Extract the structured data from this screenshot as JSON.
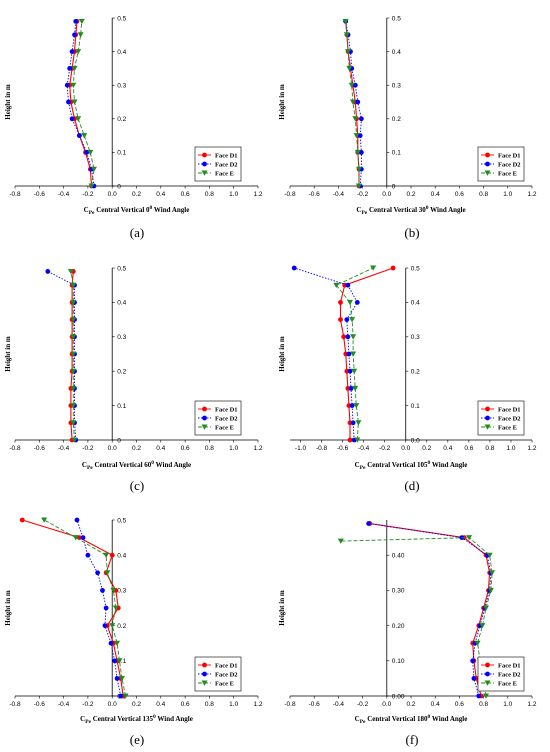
{
  "chart_data": [
    {
      "type": "line",
      "caption": "(a)",
      "xlabel_prefix": "C",
      "xlabel_sub": "Pe",
      "xlabel_mid": " Central Vertical ",
      "angle": "0",
      "xlabel_sup": "0",
      "xlabel_suffix": " Wind Angle",
      "ylabel": "Height in m",
      "xlim": [
        -0.8,
        1.2
      ],
      "ylim": [
        0,
        0.5
      ],
      "xticks": [
        "-0.8",
        "-0.6",
        "-0.4",
        "-0.2",
        "0.0",
        "0.2",
        "0.4",
        "0.6",
        "0.8",
        "1.0",
        "1.2"
      ],
      "yticks": [
        "0",
        "0.1",
        "0.2",
        "0.3",
        "0.4",
        "0.5"
      ],
      "series": [
        {
          "name": "Face D1",
          "x": [
            -0.17,
            -0.18,
            -0.22,
            -0.27,
            -0.31,
            -0.34,
            -0.35,
            -0.33,
            -0.31,
            -0.3,
            -0.29
          ],
          "y": [
            0,
            0.05,
            0.1,
            0.15,
            0.2,
            0.25,
            0.3,
            0.35,
            0.4,
            0.45,
            0.49
          ]
        },
        {
          "name": "Face D2",
          "x": [
            -0.15,
            -0.17,
            -0.21,
            -0.27,
            -0.33,
            -0.36,
            -0.37,
            -0.35,
            -0.33,
            -0.31,
            -0.3
          ],
          "y": [
            0,
            0.05,
            0.1,
            0.15,
            0.2,
            0.25,
            0.3,
            0.35,
            0.4,
            0.45,
            0.49
          ]
        },
        {
          "name": "Face E",
          "x": [
            -0.17,
            -0.15,
            -0.18,
            -0.23,
            -0.28,
            -0.31,
            -0.32,
            -0.31,
            -0.28,
            -0.26,
            -0.25
          ],
          "y": [
            0,
            0.05,
            0.1,
            0.15,
            0.2,
            0.25,
            0.3,
            0.35,
            0.4,
            0.45,
            0.49
          ]
        }
      ]
    },
    {
      "type": "line",
      "caption": "(b)",
      "xlabel_prefix": "C",
      "xlabel_sub": "Pe",
      "xlabel_mid": " Central Vertical ",
      "angle": "30",
      "xlabel_sup": "0",
      "xlabel_suffix": " Wind Angle",
      "ylabel": "Height in m",
      "xlim": [
        -0.8,
        1.2
      ],
      "ylim": [
        0,
        0.5
      ],
      "xticks": [
        "-0.8",
        "-0.6",
        "-0.4",
        "-0.2",
        "0.0",
        "0.2",
        "0.4",
        "0.6",
        "0.8",
        "1.0",
        "1.2"
      ],
      "yticks": [
        "0",
        "0.1",
        "0.2",
        "0.3",
        "0.4",
        "0.5"
      ],
      "series": [
        {
          "name": "Face D1",
          "x": [
            -0.23,
            -0.23,
            -0.24,
            -0.24,
            -0.25,
            -0.26,
            -0.28,
            -0.3,
            -0.32,
            -0.33,
            -0.34
          ],
          "y": [
            0,
            0.05,
            0.1,
            0.15,
            0.2,
            0.25,
            0.3,
            0.35,
            0.4,
            0.45,
            0.49
          ]
        },
        {
          "name": "Face D2",
          "x": [
            -0.22,
            -0.21,
            -0.21,
            -0.22,
            -0.21,
            -0.24,
            -0.26,
            -0.29,
            -0.3,
            -0.32,
            -0.34
          ],
          "y": [
            0,
            0.05,
            0.1,
            0.15,
            0.2,
            0.25,
            0.3,
            0.35,
            0.4,
            0.45,
            0.49
          ]
        },
        {
          "name": "Face E",
          "x": [
            -0.23,
            -0.23,
            -0.24,
            -0.25,
            -0.26,
            -0.28,
            -0.29,
            -0.31,
            -0.32,
            -0.33,
            -0.34
          ],
          "y": [
            0,
            0.05,
            0.1,
            0.15,
            0.2,
            0.25,
            0.3,
            0.35,
            0.4,
            0.45,
            0.49
          ]
        }
      ]
    },
    {
      "type": "line",
      "caption": "(c)",
      "xlabel_prefix": "C",
      "xlabel_sub": "Pe",
      "xlabel_mid": " Central Vertical ",
      "angle": "60",
      "xlabel_sup": "0",
      "xlabel_suffix": " Wind Angle",
      "ylabel": "Height in m",
      "xlim": [
        -0.8,
        1.2
      ],
      "ylim": [
        0,
        0.5
      ],
      "xticks": [
        "-0.8",
        "-0.6",
        "-0.4",
        "-0.2",
        "0.0",
        "0.2",
        "0.4",
        "0.6",
        "0.8",
        "1.0",
        "1.2"
      ],
      "yticks": [
        "0",
        "0.1",
        "0.2",
        "0.3",
        "0.4",
        "0.5"
      ],
      "series": [
        {
          "name": "Face D1",
          "x": [
            -0.33,
            -0.34,
            -0.34,
            -0.34,
            -0.33,
            -0.33,
            -0.33,
            -0.33,
            -0.33,
            -0.33,
            -0.32
          ],
          "y": [
            0,
            0.05,
            0.1,
            0.15,
            0.2,
            0.25,
            0.3,
            0.35,
            0.4,
            0.45,
            0.49
          ]
        },
        {
          "name": "Face D2",
          "x": [
            -0.3,
            -0.31,
            -0.31,
            -0.31,
            -0.31,
            -0.31,
            -0.31,
            -0.31,
            -0.31,
            -0.31,
            -0.53
          ],
          "y": [
            0,
            0.05,
            0.1,
            0.15,
            0.2,
            0.25,
            0.3,
            0.35,
            0.4,
            0.45,
            0.49
          ]
        },
        {
          "name": "Face E",
          "x": [
            -0.31,
            -0.32,
            -0.32,
            -0.32,
            -0.32,
            -0.32,
            -0.32,
            -0.32,
            -0.32,
            -0.32,
            -0.34
          ],
          "y": [
            0,
            0.05,
            0.1,
            0.15,
            0.2,
            0.25,
            0.3,
            0.35,
            0.4,
            0.45,
            0.49
          ]
        }
      ]
    },
    {
      "type": "line",
      "caption": "(d)",
      "xlabel_prefix": "C",
      "xlabel_sub": "Pe",
      "xlabel_mid": " Central Vertical ",
      "angle": "105",
      "xlabel_sup": "0",
      "xlabel_suffix": " Wind Angle",
      "ylabel": "Height in m",
      "xlim": [
        -1.1,
        1.2
      ],
      "ylim": [
        0,
        0.5
      ],
      "xticks": [
        "-1.0",
        "-0.8",
        "-0.6",
        "-0.4",
        "-0.2",
        "0.0",
        "0.2",
        "0.4",
        "0.6",
        "0.8",
        "1.0",
        "1.2"
      ],
      "xtick_values": [
        -1.0,
        -0.8,
        -0.6,
        -0.4,
        -0.2,
        0.0,
        0.2,
        0.4,
        0.6,
        0.8,
        1.0,
        1.2
      ],
      "yticks": [
        "0.0",
        "0.1",
        "0.2",
        "0.3",
        "0.4",
        "0.5"
      ],
      "series": [
        {
          "name": "Face D1",
          "x": [
            -0.53,
            -0.53,
            -0.54,
            -0.55,
            -0.56,
            -0.57,
            -0.59,
            -0.62,
            -0.62,
            -0.58,
            -0.12
          ],
          "y": [
            0,
            0.05,
            0.1,
            0.15,
            0.2,
            0.25,
            0.3,
            0.35,
            0.4,
            0.45,
            0.5
          ]
        },
        {
          "name": "Face D2",
          "x": [
            -0.49,
            -0.5,
            -0.51,
            -0.52,
            -0.53,
            -0.54,
            -0.55,
            -0.56,
            -0.46,
            -0.55,
            -1.06
          ],
          "y": [
            0,
            0.05,
            0.1,
            0.15,
            0.2,
            0.25,
            0.3,
            0.35,
            0.4,
            0.45,
            0.5
          ]
        },
        {
          "name": "Face E",
          "x": [
            -0.46,
            -0.45,
            -0.47,
            -0.48,
            -0.49,
            -0.5,
            -0.5,
            -0.51,
            -0.53,
            -0.66,
            -0.31
          ],
          "y": [
            0,
            0.05,
            0.1,
            0.15,
            0.2,
            0.25,
            0.3,
            0.35,
            0.4,
            0.45,
            0.5
          ]
        }
      ]
    },
    {
      "type": "line",
      "caption": "(e)",
      "xlabel_prefix": "C",
      "xlabel_sub": "Pe",
      "xlabel_mid": " Central Vertical ",
      "angle": "135",
      "xlabel_sup": "0",
      "xlabel_suffix": " Wind Angle",
      "ylabel": "Height in m",
      "xlim": [
        -0.8,
        1.2
      ],
      "ylim": [
        0,
        0.5
      ],
      "xticks": [
        "-0.8",
        "-0.6",
        "-0.4",
        "-0.2",
        "0.0",
        "0.2",
        "0.4",
        "0.6",
        "0.8",
        "1.0",
        "1.2"
      ],
      "yticks": [
        "0.0",
        "0.1",
        "0.2",
        "0.3",
        "0.4",
        "0.5"
      ],
      "series": [
        {
          "name": "Face D1",
          "x": [
            0.09,
            0.07,
            0.04,
            0.01,
            -0.04,
            0.05,
            0.03,
            -0.05,
            0.0,
            -0.27,
            -0.74
          ],
          "y": [
            0,
            0.05,
            0.1,
            0.15,
            0.2,
            0.25,
            0.3,
            0.35,
            0.4,
            0.45,
            0.5
          ]
        },
        {
          "name": "Face D2",
          "x": [
            0.07,
            0.04,
            0.02,
            -0.01,
            -0.06,
            -0.05,
            -0.08,
            -0.12,
            -0.2,
            -0.24,
            -0.29
          ],
          "y": [
            0,
            0.05,
            0.1,
            0.15,
            0.2,
            0.25,
            0.3,
            0.35,
            0.4,
            0.45,
            0.5
          ]
        },
        {
          "name": "Face E",
          "x": [
            0.11,
            0.08,
            0.06,
            0.04,
            0.0,
            0.03,
            0.01,
            -0.04,
            -0.05,
            -0.3,
            -0.56
          ],
          "y": [
            0,
            0.05,
            0.1,
            0.15,
            0.2,
            0.25,
            0.3,
            0.35,
            0.4,
            0.45,
            0.5
          ]
        }
      ]
    },
    {
      "type": "line",
      "caption": "(f)",
      "xlabel_prefix": "C",
      "xlabel_sub": "Pe",
      "xlabel_mid": " Central Vertical ",
      "angle": "180",
      "xlabel_sup": "0",
      "xlabel_suffix": " Wind Angle",
      "ylabel": "Height in m",
      "xlim": [
        -0.8,
        1.2
      ],
      "ylim": [
        0,
        0.5
      ],
      "xticks": [
        "-0.8",
        "-0.6",
        "-0.4",
        "-0.2",
        "0.0",
        "0.2",
        "0.4",
        "0.6",
        "0.8",
        "1.0",
        "1.2"
      ],
      "yticks": [
        "0.00",
        "0.10",
        "0.20",
        "0.30",
        "0.40"
      ],
      "ytick_values": [
        0,
        0.1,
        0.2,
        0.3,
        0.4
      ],
      "series": [
        {
          "name": "Face D1",
          "x": [
            0.78,
            0.74,
            0.72,
            0.71,
            0.76,
            0.8,
            0.84,
            0.85,
            0.82,
            0.64,
            -0.14
          ],
          "y": [
            0,
            0.05,
            0.1,
            0.15,
            0.2,
            0.25,
            0.3,
            0.35,
            0.4,
            0.45,
            0.49
          ]
        },
        {
          "name": "Face D2",
          "x": [
            0.76,
            0.72,
            0.71,
            0.73,
            0.77,
            0.81,
            0.85,
            0.86,
            0.83,
            0.62,
            -0.15
          ],
          "y": [
            0,
            0.05,
            0.1,
            0.15,
            0.2,
            0.25,
            0.3,
            0.35,
            0.4,
            0.45,
            0.49
          ]
        },
        {
          "name": "Face E",
          "x": [
            0.82,
            0.8,
            0.77,
            0.75,
            0.79,
            0.82,
            0.86,
            0.87,
            0.85,
            0.68,
            -0.38
          ],
          "y": [
            0,
            0.05,
            0.1,
            0.15,
            0.2,
            0.25,
            0.3,
            0.35,
            0.4,
            0.45,
            0.44
          ]
        }
      ]
    }
  ],
  "legend": {
    "entries": [
      "Face D1",
      "Face D2",
      "Face E"
    ],
    "placement": "bottom-right"
  },
  "colors": {
    "d1": "#ff0000",
    "d2": "#0000ff",
    "e": "#228b22"
  }
}
